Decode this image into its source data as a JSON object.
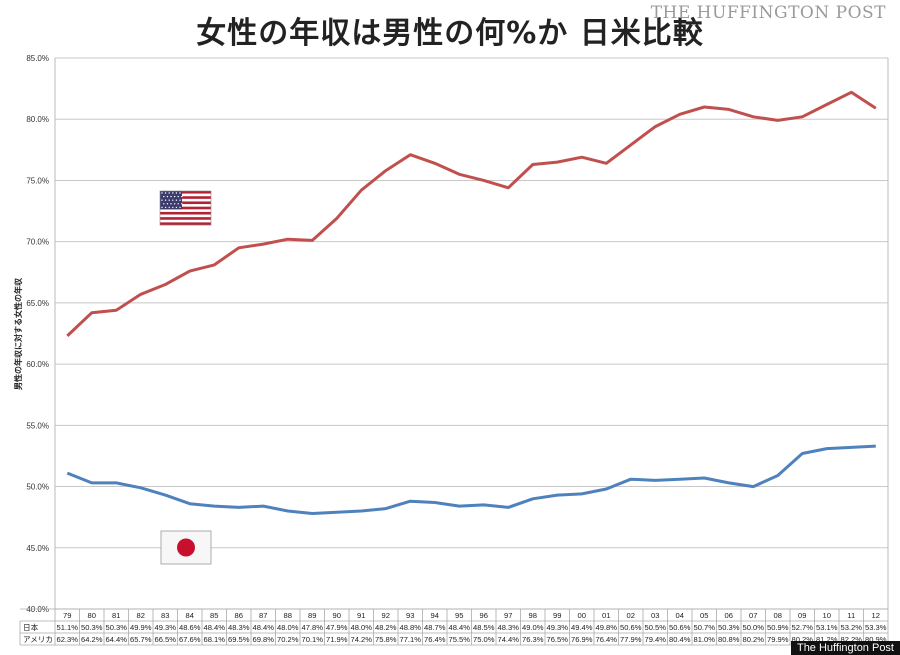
{
  "brand": "THE HUFFINGTON POST",
  "watermark": "The Huffington Post",
  "colors": {
    "us_line": "#c0504d",
    "japan_line": "#4f81bd",
    "grid": "#c8c8c8"
  },
  "icons": {
    "us": "us-flag-icon",
    "japan": "japan-flag-icon"
  },
  "chart_data": {
    "type": "line",
    "title": "女性の年収は男性の何%か 日米比較",
    "ylabel": "男性の年収に対する女性の年収",
    "xlabel": "",
    "ylim": [
      40.0,
      85.0
    ],
    "yticks": [
      "40.0%",
      "45.0%",
      "50.0%",
      "55.0%",
      "60.0%",
      "65.0%",
      "70.0%",
      "75.0%",
      "80.0%",
      "85.0%"
    ],
    "grid": true,
    "categories": [
      "79",
      "80",
      "81",
      "82",
      "83",
      "84",
      "85",
      "86",
      "87",
      "88",
      "89",
      "90",
      "91",
      "92",
      "93",
      "94",
      "95",
      "96",
      "97",
      "98",
      "99",
      "00",
      "01",
      "02",
      "03",
      "04",
      "05",
      "06",
      "07",
      "08",
      "09",
      "10",
      "11",
      "12"
    ],
    "series": [
      {
        "name": "日本",
        "color": "#4f81bd",
        "values": [
          51.1,
          50.3,
          50.3,
          49.9,
          49.3,
          48.6,
          48.4,
          48.3,
          48.4,
          48.0,
          47.8,
          47.9,
          48.0,
          48.2,
          48.8,
          48.7,
          48.4,
          48.5,
          48.3,
          49.0,
          49.3,
          49.4,
          49.8,
          50.6,
          50.5,
          50.6,
          50.7,
          50.3,
          50.0,
          50.9,
          52.7,
          53.1,
          53.2,
          53.3
        ],
        "labels": [
          "51.1%",
          "50.3%",
          "50.3%",
          "49.9%",
          "49.3%",
          "48.6%",
          "48.4%",
          "48.3%",
          "48.4%",
          "48.0%",
          "47.8%",
          "47.9%",
          "48.0%",
          "48.2%",
          "48.8%",
          "48.7%",
          "48.4%",
          "48.5%",
          "48.3%",
          "49.0%",
          "49.3%",
          "49.4%",
          "49.8%",
          "50.6%",
          "50.5%",
          "50.6%",
          "50.7%",
          "50.3%",
          "50.0%",
          "50.9%",
          "52.7%",
          "53.1%",
          "53.2%",
          "53.3%"
        ]
      },
      {
        "name": "アメリカ",
        "color": "#c0504d",
        "values": [
          62.3,
          64.2,
          64.4,
          65.7,
          66.5,
          67.6,
          68.1,
          69.5,
          69.8,
          70.2,
          70.1,
          71.9,
          74.2,
          75.8,
          77.1,
          76.4,
          75.5,
          75.0,
          74.4,
          76.3,
          76.5,
          76.9,
          76.4,
          77.9,
          79.4,
          80.4,
          81.0,
          80.8,
          80.2,
          79.9,
          80.2,
          81.2,
          82.2,
          80.9
        ],
        "labels": [
          "62.3%",
          "64.2%",
          "64.4%",
          "65.7%",
          "66.5%",
          "67.6%",
          "68.1%",
          "69.5%",
          "69.8%",
          "70.2%",
          "70.1%",
          "71.9%",
          "74.2%",
          "75.8%",
          "77.1%",
          "76.4%",
          "75.5%",
          "75.0%",
          "74.4%",
          "76.3%",
          "76.5%",
          "76.9%",
          "76.4%",
          "77.9%",
          "79.4%",
          "80.4%",
          "81.0%",
          "80.8%",
          "80.2%",
          "79.9%",
          "80.2%",
          "81.2%",
          "82.2%",
          "80.9%"
        ]
      }
    ]
  }
}
